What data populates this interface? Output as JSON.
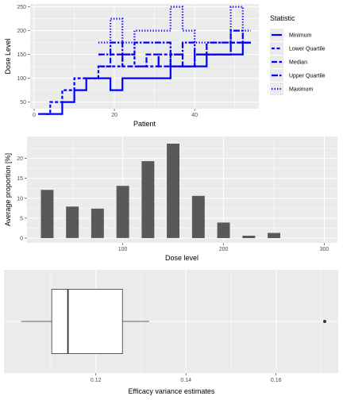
{
  "colors": {
    "panel_bg": "#ebebeb",
    "grid_major": "#ffffff",
    "series_line": "#0000ff",
    "bar_fill": "#595959",
    "box_fill": "#ffffff",
    "box_stroke": "#333333",
    "tick_text": "#4d4d4d"
  },
  "chart_data": [
    {
      "type": "line",
      "subtype": "step",
      "xlabel": "Patient",
      "ylabel": "Dose Level",
      "xlim": [
        -1,
        56
      ],
      "ylim": [
        36,
        256
      ],
      "x_ticks": [
        0,
        20,
        40
      ],
      "y_ticks": [
        50,
        100,
        150,
        200,
        250
      ],
      "legend": {
        "title": "Statistic",
        "placement": "right",
        "entries": [
          "Minimum",
          "Lower Quartile",
          "Median",
          "Upper Quartile",
          "Maximum"
        ]
      },
      "series": [
        {
          "name": "Minimum",
          "linestyle": "solid",
          "points": [
            [
              1,
              25
            ],
            [
              7,
              25
            ],
            [
              7,
              50
            ],
            [
              10,
              50
            ],
            [
              10,
              75
            ],
            [
              13,
              75
            ],
            [
              13,
              100
            ],
            [
              19,
              100
            ],
            [
              19,
              75
            ],
            [
              22,
              75
            ],
            [
              22,
              100
            ],
            [
              34,
              100
            ],
            [
              34,
              125
            ],
            [
              43,
              125
            ],
            [
              43,
              150
            ],
            [
              52,
              150
            ],
            [
              52,
              175
            ],
            [
              54,
              175
            ]
          ]
        },
        {
          "name": "Lower Quartile",
          "linestyle": "dashed",
          "points": [
            [
              3,
              25
            ],
            [
              4,
              25
            ],
            [
              4,
              50
            ],
            [
              7,
              50
            ],
            [
              7,
              75
            ],
            [
              10,
              75
            ],
            [
              10,
              100
            ],
            [
              16,
              100
            ],
            [
              16,
              125
            ],
            [
              22,
              125
            ],
            [
              22,
              150
            ],
            [
              25,
              150
            ],
            [
              25,
              125
            ],
            [
              31,
              125
            ],
            [
              31,
              150
            ],
            [
              34,
              150
            ],
            [
              34,
              125
            ],
            [
              40,
              125
            ],
            [
              40,
              150
            ],
            [
              49,
              150
            ],
            [
              49,
              175
            ],
            [
              54,
              175
            ]
          ]
        },
        {
          "name": "Median",
          "linestyle": "longdash",
          "points": [
            [
              16,
              125
            ],
            [
              19,
              125
            ],
            [
              19,
              150
            ],
            [
              22,
              150
            ],
            [
              22,
              125
            ],
            [
              28,
              125
            ],
            [
              28,
              150
            ],
            [
              31,
              150
            ],
            [
              31,
              125
            ],
            [
              34,
              125
            ],
            [
              34,
              150
            ],
            [
              37,
              150
            ],
            [
              37,
              125
            ],
            [
              40,
              125
            ],
            [
              40,
              150
            ],
            [
              49,
              150
            ],
            [
              49,
              175
            ],
            [
              54,
              175
            ]
          ]
        },
        {
          "name": "Upper Quartile",
          "linestyle": "twodash",
          "points": [
            [
              16,
              150
            ],
            [
              19,
              150
            ],
            [
              19,
              175
            ],
            [
              22,
              175
            ],
            [
              22,
              150
            ],
            [
              25,
              150
            ],
            [
              25,
              175
            ],
            [
              34,
              175
            ],
            [
              34,
              150
            ],
            [
              37,
              150
            ],
            [
              37,
              175
            ],
            [
              40,
              175
            ],
            [
              40,
              150
            ],
            [
              43,
              150
            ],
            [
              43,
              175
            ],
            [
              49,
              175
            ],
            [
              49,
              200
            ],
            [
              52,
              200
            ],
            [
              52,
              175
            ],
            [
              54,
              175
            ]
          ]
        },
        {
          "name": "Maximum",
          "linestyle": "dotted",
          "points": [
            [
              16,
              175
            ],
            [
              19,
              175
            ],
            [
              19,
              225
            ],
            [
              22,
              225
            ],
            [
              22,
              175
            ],
            [
              25,
              175
            ],
            [
              25,
              200
            ],
            [
              34,
              200
            ],
            [
              34,
              250
            ],
            [
              37,
              250
            ],
            [
              37,
              200
            ],
            [
              40,
              200
            ],
            [
              40,
              175
            ],
            [
              49,
              175
            ],
            [
              49,
              250
            ],
            [
              52,
              250
            ],
            [
              52,
              200
            ],
            [
              54,
              200
            ]
          ]
        }
      ]
    },
    {
      "type": "bar",
      "xlabel": "Dose level",
      "ylabel": "Average proportion [%]",
      "xlim": [
        5,
        313
      ],
      "ylim": [
        -1.2,
        25.5
      ],
      "x_ticks": [
        100,
        200,
        300
      ],
      "y_ticks": [
        0,
        5,
        10,
        15,
        20
      ],
      "bar_width": 12.5,
      "x": [
        25,
        50,
        75,
        100,
        125,
        150,
        175,
        200,
        225,
        250
      ],
      "values": [
        12.1,
        7.9,
        7.4,
        13.1,
        19.3,
        23.7,
        10.6,
        3.9,
        0.6,
        1.3
      ]
    },
    {
      "type": "box",
      "xlabel": "Efficacy variance estimates",
      "ylabel": "",
      "xlim": [
        0.0996,
        0.1738
      ],
      "x_ticks": [
        0.12,
        0.14,
        0.16
      ],
      "x_tick_labels": [
        "0.12",
        "0.14",
        "0.16"
      ],
      "whisker_low": 0.1034,
      "q1": 0.1102,
      "median": 0.1138,
      "q3": 0.1259,
      "whisker_high": 0.1318,
      "outliers": [
        0.1708
      ]
    }
  ]
}
